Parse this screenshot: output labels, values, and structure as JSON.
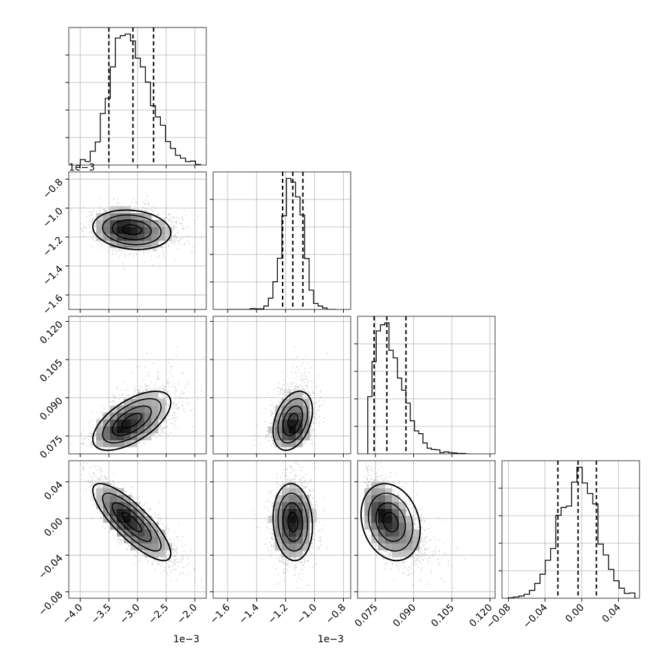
{
  "chart_data": {
    "type": "corner",
    "title": "",
    "grid": true,
    "scatter_color": "#9a9a9a",
    "line_color": "#000000",
    "dims": [
      {
        "range": [
          -4.2,
          -1.8
        ],
        "ticks": [
          -4.0,
          -3.5,
          -3.0,
          -2.5,
          -2.0
        ],
        "tick_labels": [
          "−4.0",
          "−3.5",
          "−3.0",
          "−2.5",
          "−2.0"
        ],
        "offset_label": "1e−3",
        "mean": -3.1,
        "sd": 0.34,
        "skew": 0.5,
        "quantiles": [
          -3.5,
          -3.08,
          -2.72
        ],
        "hist_range": [
          -4.0,
          -1.9
        ],
        "hist_bins": 24
      },
      {
        "range": [
          -1.7,
          -0.75
        ],
        "ticks": [
          -1.6,
          -1.4,
          -1.2,
          -1.0,
          -0.8
        ],
        "tick_labels": [
          "−1.6",
          "−1.4",
          "−1.2",
          "−1.0",
          "−0.8"
        ],
        "offset_label": "1e−3",
        "mean": -1.15,
        "sd": 0.068,
        "skew": 0,
        "quantiles": [
          -1.22,
          -1.15,
          -1.08
        ],
        "hist_range": [
          -1.6,
          -0.85
        ],
        "hist_bins": 24
      },
      {
        "range": [
          0.068,
          0.122
        ],
        "ticks": [
          0.075,
          0.09,
          0.105,
          0.12
        ],
        "tick_labels": [
          "0.075",
          "0.090",
          "0.105",
          "0.120"
        ],
        "offset_label": "",
        "mean": 0.081,
        "sd": 0.0058,
        "skew": 1.3,
        "quantiles": [
          0.0745,
          0.0795,
          0.087
        ],
        "hist_range": [
          0.072,
          0.112
        ],
        "hist_bins": 24
      },
      {
        "range": [
          -0.087,
          0.063
        ],
        "ticks": [
          -0.08,
          -0.04,
          0.0,
          0.04
        ],
        "tick_labels": [
          "−0.08",
          "−0.04",
          "0.00",
          "0.04"
        ],
        "offset_label": "",
        "mean": -0.004,
        "sd": 0.021,
        "skew": 0,
        "quantiles": [
          -0.026,
          -0.004,
          0.016
        ],
        "hist_range": [
          -0.08,
          0.058
        ],
        "hist_bins": 24
      }
    ],
    "correlations": {
      "1-0": -0.15,
      "2-0": 0.62,
      "2-1": 0.35,
      "3-0": -0.82,
      "3-1": -0.1,
      "3-2": -0.2
    }
  }
}
